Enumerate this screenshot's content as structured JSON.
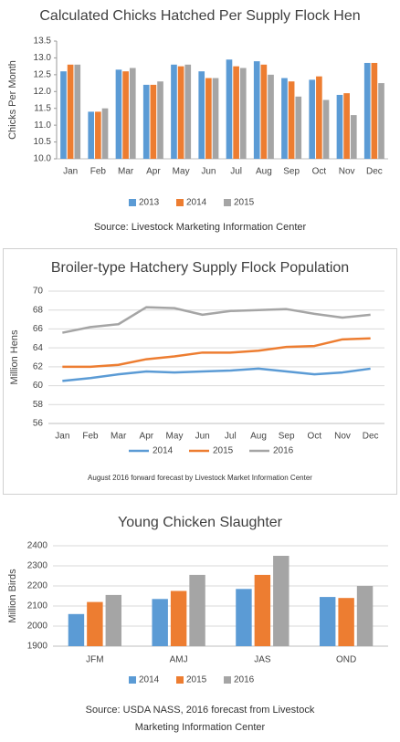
{
  "chart_data": [
    {
      "type": "bar",
      "title": "Calculated Chicks Hatched Per Supply Flock Hen",
      "y_label": "Chicks Per Month",
      "categories": [
        "Jan",
        "Feb",
        "Mar",
        "Apr",
        "May",
        "Jun",
        "Jul",
        "Aug",
        "Sep",
        "Oct",
        "Nov",
        "Dec"
      ],
      "series": [
        {
          "name": "2013",
          "color": "#5b9bd5",
          "values": [
            12.6,
            11.4,
            12.65,
            12.2,
            12.8,
            12.6,
            12.95,
            12.9,
            12.4,
            12.35,
            11.9,
            12.85
          ]
        },
        {
          "name": "2014",
          "color": "#ed7d31",
          "values": [
            12.8,
            11.4,
            12.6,
            12.2,
            12.75,
            12.4,
            12.75,
            12.8,
            12.3,
            12.45,
            11.95,
            12.85
          ]
        },
        {
          "name": "2015",
          "color": "#a5a5a5",
          "values": [
            12.8,
            11.5,
            12.7,
            12.3,
            12.8,
            12.4,
            12.7,
            12.5,
            11.85,
            11.75,
            11.3,
            12.25
          ]
        }
      ],
      "ylim": [
        10,
        13.5
      ],
      "yticks": [
        {
          "value": 10,
          "label": "10.0"
        },
        10.5,
        {
          "value": 11,
          "label": "11.0"
        },
        11.5,
        {
          "value": 12,
          "label": "12.0"
        },
        12.5,
        {
          "value": 13,
          "label": "13.0"
        },
        13.5
      ],
      "grid": false,
      "legend": "bottom",
      "source": "Source: Livestock Marketing Information Center"
    },
    {
      "type": "line",
      "title": "Broiler-type Hatchery Supply Flock Population",
      "y_label": "Million Hens",
      "categories": [
        "Jan",
        "Feb",
        "Mar",
        "Apr",
        "May",
        "Jun",
        "Jul",
        "Aug",
        "Sep",
        "Oct",
        "Nov",
        "Dec"
      ],
      "series": [
        {
          "name": "2014",
          "color": "#5b9bd5",
          "values": [
            60.5,
            60.8,
            61.2,
            61.5,
            61.4,
            61.5,
            61.6,
            61.8,
            61.5,
            61.2,
            61.4,
            61.8
          ]
        },
        {
          "name": "2015",
          "color": "#ed7d31",
          "values": [
            62.0,
            62.0,
            62.2,
            62.8,
            63.1,
            63.5,
            63.5,
            63.7,
            64.1,
            64.2,
            64.9,
            65.0
          ]
        },
        {
          "name": "2016",
          "color": "#a5a5a5",
          "values": [
            65.6,
            66.2,
            66.5,
            68.3,
            68.2,
            67.5,
            67.9,
            68.0,
            68.1,
            67.6,
            67.2,
            67.5
          ]
        }
      ],
      "ylim": [
        56,
        70
      ],
      "yticks": [
        56,
        58,
        60,
        62,
        64,
        66,
        68,
        70
      ],
      "grid": true,
      "legend": "bottom",
      "source": "August 2016 forward forecast by Livestock Market Information Center"
    },
    {
      "type": "bar",
      "title": "Young Chicken Slaughter",
      "y_label": "Million Birds",
      "categories": [
        "JFM",
        "AMJ",
        "JAS",
        "OND"
      ],
      "series": [
        {
          "name": "2014",
          "color": "#5b9bd5",
          "values": [
            2060,
            2135,
            2185,
            2145
          ]
        },
        {
          "name": "2015",
          "color": "#ed7d31",
          "values": [
            2120,
            2175,
            2255,
            2140
          ]
        },
        {
          "name": "2016",
          "color": "#a5a5a5",
          "values": [
            2155,
            2255,
            2350,
            2200
          ]
        }
      ],
      "ylim": [
        1900,
        2400
      ],
      "yticks": [
        1900,
        2000,
        2100,
        2200,
        2300,
        2400
      ],
      "grid": true,
      "legend": "bottom",
      "source": "Source: USDA NASS, 2016 forecast from Livestock Marketing Information Center"
    }
  ]
}
